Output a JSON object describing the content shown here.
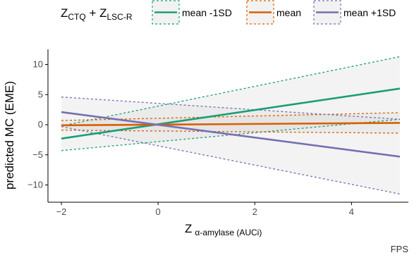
{
  "chart_data": {
    "type": "line",
    "legend": {
      "title_main_1": "Z",
      "title_sub_1": "CTQ",
      "title_plus": " + Z",
      "title_sub_2": "LSC-R",
      "placement": "top"
    },
    "xlabel_main": "Z",
    "xlabel_sub": "α-amylase (AUCi)",
    "ylabel": "predicted MC (EME)",
    "xlim": [
      -2,
      5
    ],
    "ylim": [
      -11.5,
      11.5
    ],
    "x_ticks": [
      -2,
      0,
      2,
      4
    ],
    "x_tick_labels": [
      "−2",
      "0",
      "2",
      "4"
    ],
    "y_ticks": [
      -10,
      -5,
      0,
      5,
      10
    ],
    "y_tick_labels": [
      "−10",
      "−5",
      "0",
      "5",
      "10"
    ],
    "grid": false,
    "series": [
      {
        "name": "mean -1SD",
        "color": "#1b9e77",
        "x": [
          -2,
          5
        ],
        "values": [
          -2.3,
          6.0
        ],
        "ci_lower": [
          -4.3,
          0.9
        ],
        "ci_upper": [
          -0.2,
          11.3
        ]
      },
      {
        "name": "mean",
        "color": "#d95f02",
        "x": [
          -2,
          5
        ],
        "values": [
          -0.1,
          0.3
        ],
        "ci_lower": [
          -0.9,
          -1.4
        ],
        "ci_upper": [
          0.7,
          2.0
        ]
      },
      {
        "name": "mean +1SD",
        "color": "#7570b3",
        "x": [
          -2,
          5
        ],
        "values": [
          2.1,
          -5.3
        ],
        "ci_lower": [
          -0.3,
          -11.5
        ],
        "ci_upper": [
          4.6,
          0.9
        ]
      }
    ],
    "corner_label": "FPS"
  }
}
